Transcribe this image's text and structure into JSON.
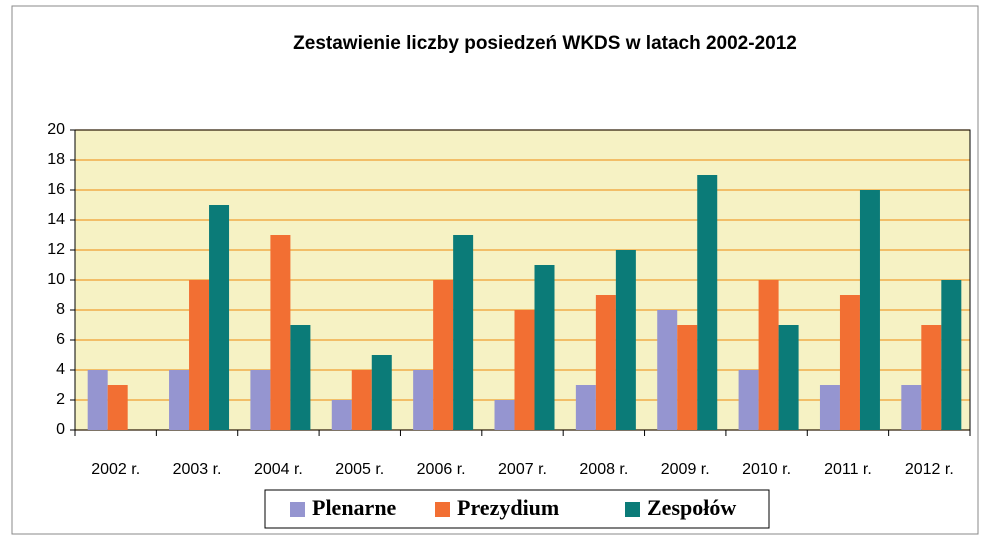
{
  "chart_data": {
    "type": "bar",
    "title": "Zestawienie liczby posiedzeń WKDS w latach 2002-2012",
    "categories": [
      "2002 r.",
      "2003 r.",
      "2004 r.",
      "2005 r.",
      "2006 r.",
      "2007 r.",
      "2008 r.",
      "2009 r.",
      "2010 r.",
      "2011 r.",
      "2012 r."
    ],
    "series": [
      {
        "name": "Plenarne",
        "color": "#9595d0",
        "values": [
          4,
          4,
          4,
          2,
          4,
          2,
          3,
          8,
          4,
          3,
          3
        ]
      },
      {
        "name": "Prezydium",
        "color": "#f26f33",
        "values": [
          3,
          10,
          13,
          4,
          10,
          8,
          9,
          7,
          10,
          9,
          7
        ]
      },
      {
        "name": "Zespołów",
        "color": "#0b7b78",
        "values": [
          0,
          15,
          7,
          5,
          13,
          11,
          12,
          17,
          7,
          16,
          10
        ]
      }
    ],
    "ylim": [
      0,
      20
    ],
    "yticks": [
      0,
      2,
      4,
      6,
      8,
      10,
      12,
      14,
      16,
      18,
      20
    ],
    "grid": true,
    "legend": "bottom"
  }
}
